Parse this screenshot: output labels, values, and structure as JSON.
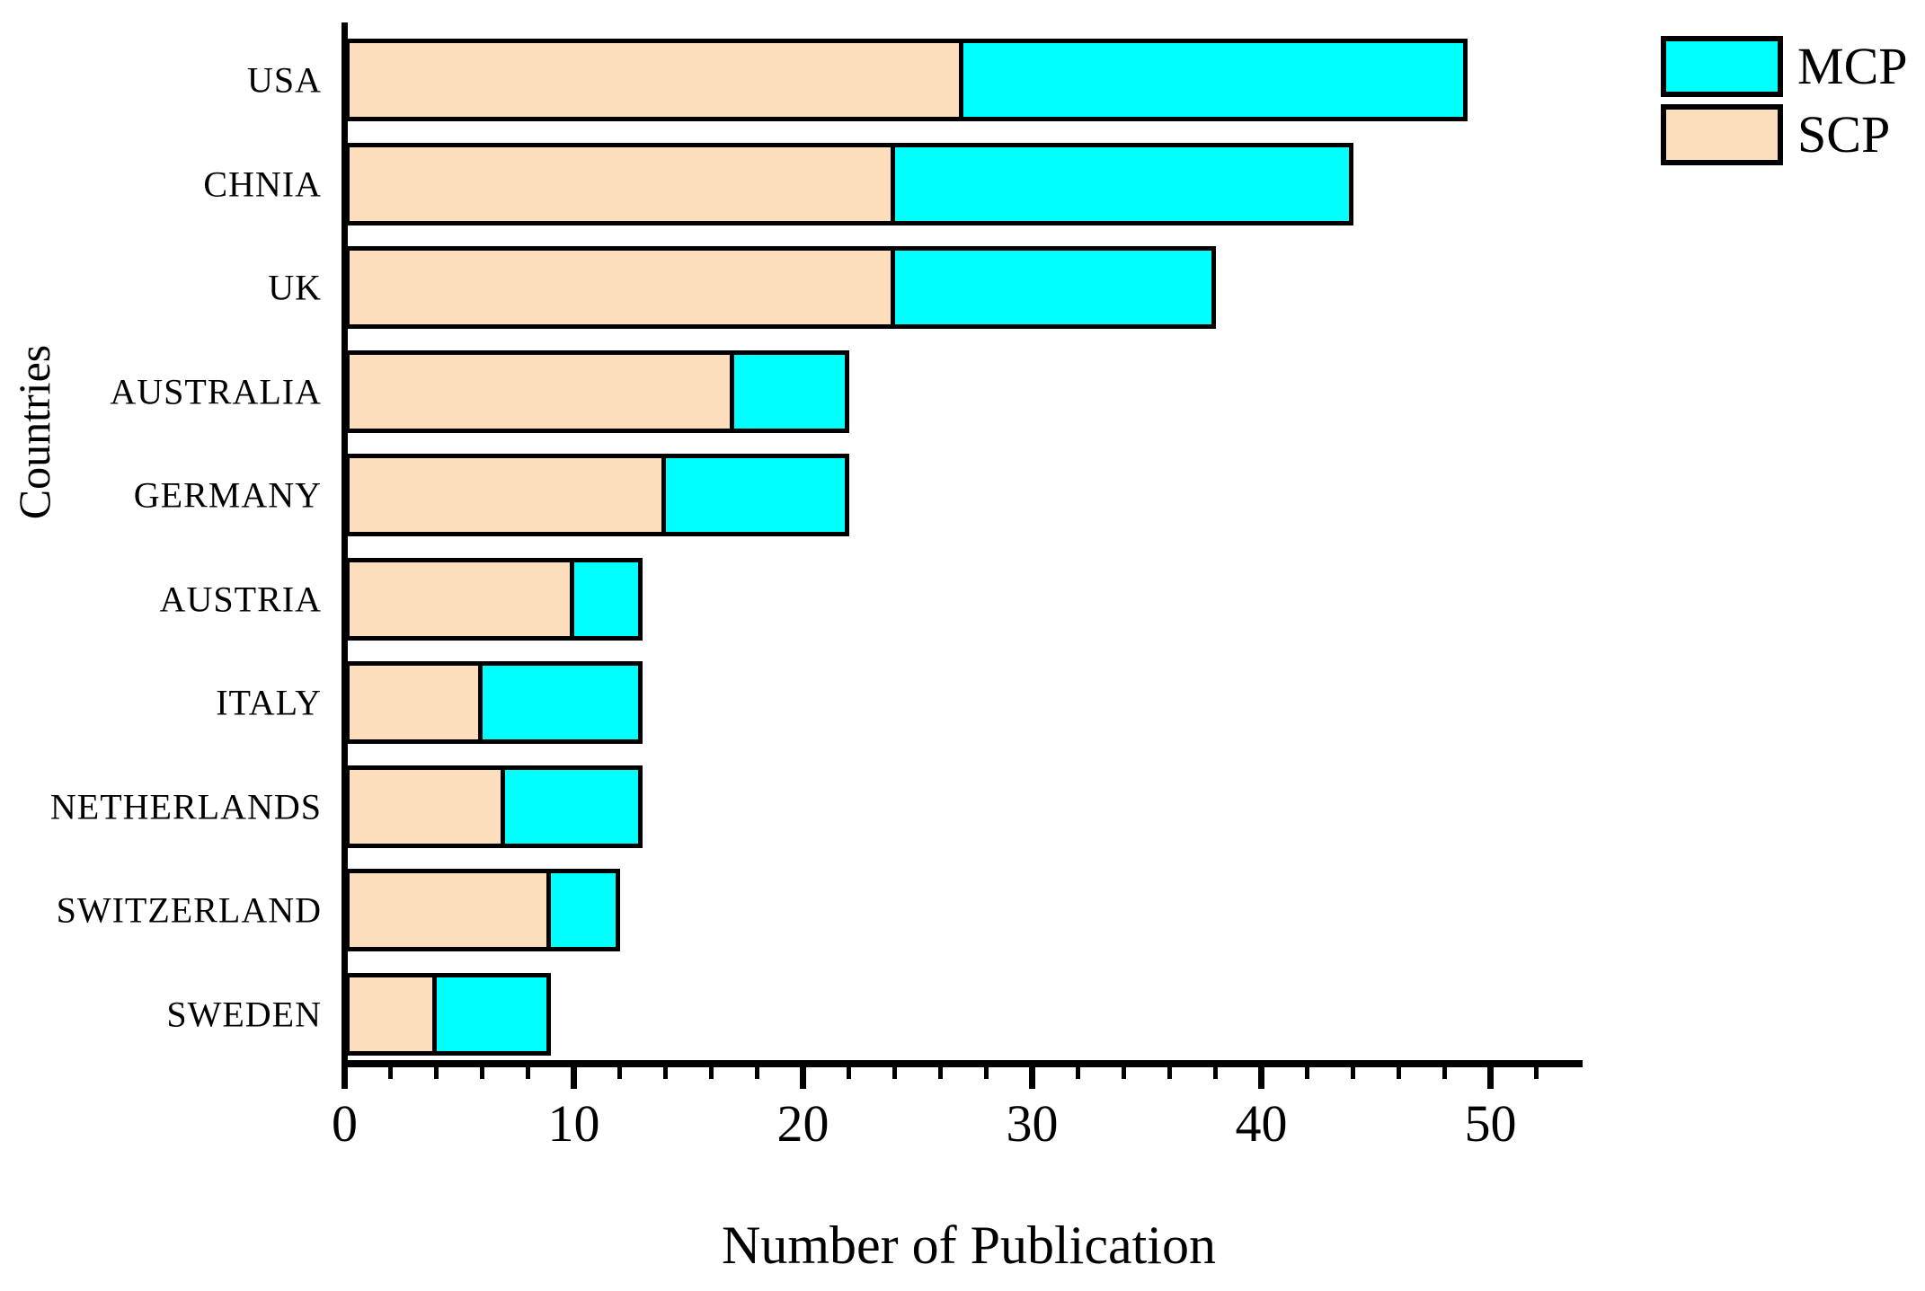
{
  "chart_data": {
    "type": "bar",
    "orientation": "horizontal",
    "stacked": true,
    "title": "",
    "xlabel": "Number of Publication",
    "ylabel": "Countries",
    "categories": [
      "USA",
      "CHNIA",
      "UK",
      "AUSTRALIA",
      "GERMANY",
      "AUSTRIA",
      "ITALY",
      "NETHERLANDS",
      "SWITZERLAND",
      "SWEDEN"
    ],
    "series": [
      {
        "name": "SCP",
        "color": "#FCDEBD",
        "values": [
          27,
          24,
          24,
          17,
          14,
          10,
          6,
          7,
          9,
          4
        ]
      },
      {
        "name": "MCP",
        "color": "#00FFFF",
        "values": [
          22,
          20,
          14,
          5,
          8,
          3,
          7,
          6,
          3,
          5
        ]
      }
    ],
    "totals": [
      49,
      44,
      38,
      22,
      22,
      13,
      13,
      13,
      12,
      9
    ],
    "xlim": [
      0,
      54
    ],
    "xticks_major": [
      0,
      10,
      20,
      30,
      40,
      50
    ],
    "xtick_minor_step": 2,
    "legend": {
      "position": "top-right",
      "entries": [
        "MCP",
        "SCP"
      ]
    },
    "grid": false,
    "bar_border_color": "#000000",
    "axis_color": "#000000"
  }
}
